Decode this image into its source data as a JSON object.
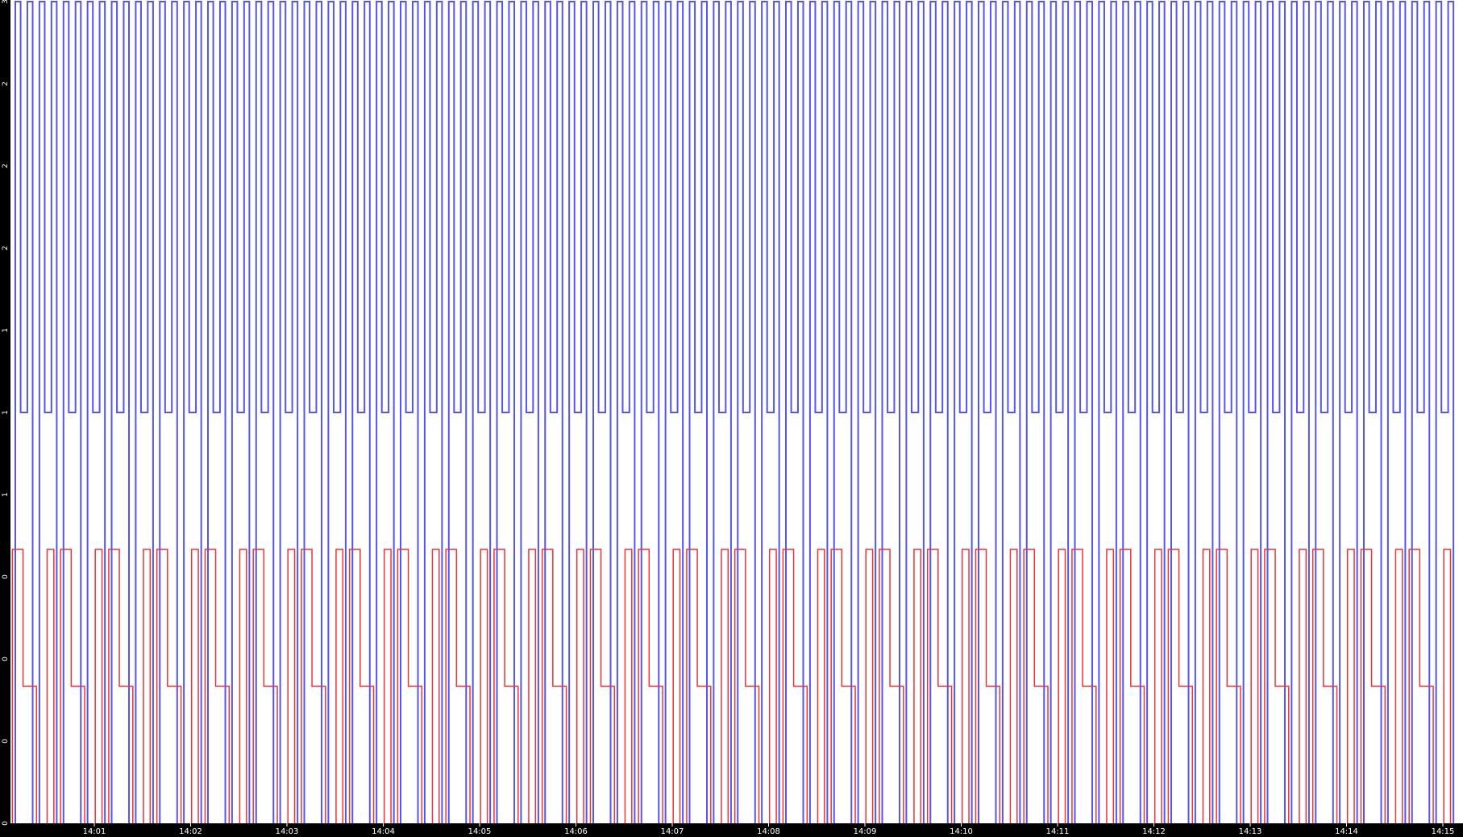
{
  "chart_data": {
    "type": "line",
    "title": "",
    "xlabel": "",
    "ylabel": "",
    "x_ticks": [
      "14:01",
      "14:02",
      "14:03",
      "14:04",
      "14:05",
      "14:06",
      "14:07",
      "14:08",
      "14:09",
      "14:10",
      "14:11",
      "14:12",
      "14:13",
      "14:14",
      "14:15"
    ],
    "y_ticks": [
      "0",
      "0",
      "0",
      "0",
      "1",
      "1",
      "1",
      "2",
      "2",
      "2",
      "3"
    ],
    "ylim": [
      0,
      3
    ],
    "xlim_minutes": [
      0.12,
      15.0
    ],
    "grid": false,
    "legend": "none",
    "colors": {
      "background": "#ffffff",
      "axis_strip": "#000000",
      "tick_text": "#ffffff"
    },
    "series": [
      {
        "color": "#5555ee",
        "levels": [
          0,
          1.5,
          3
        ],
        "pulse_period_minutes": 0.25,
        "pulse_high_level": 3,
        "pulse_low_level": 1.5,
        "pulse_count": 60,
        "start_minute": 0.18
      },
      {
        "color": "#ee3333",
        "levels": [
          0,
          0.5,
          1
        ],
        "pulse_period_minutes": 0.5,
        "pulse_count": 30,
        "start_minute": 0.15
      }
    ]
  }
}
